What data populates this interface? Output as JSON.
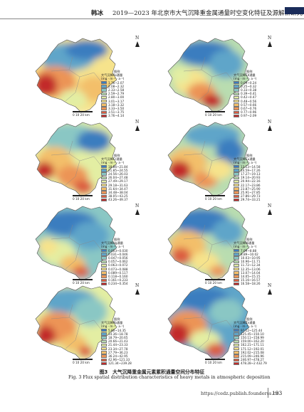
{
  "header": {
    "author": "韩冰",
    "title": "2019—2023 年北京市大气沉降重金属通量时空变化特征及源解析研究"
  },
  "north_label": "N",
  "legend_title": "图例",
  "flux_unit": "(mg · m⁻² · a⁻¹)",
  "scale_label": "0  10  20 km",
  "panels": [
    {
      "element": "As",
      "label": "大气沉降As通量",
      "colors": [
        "#3b7dbf",
        "#5fa5c9",
        "#8ac7c4",
        "#b9ddb0",
        "#e3eea3",
        "#f6e38c",
        "#f3bf6a",
        "#ec9456",
        "#dc5d3f",
        "#c22b2b"
      ],
      "ranges": [
        "1.76~2.07",
        "2.08~2.32",
        "2.33~2.58",
        "2.59~2.79",
        "2.80~3.00",
        "3.01~3.17",
        "3.18~3.32",
        "3.33~3.50",
        "3.51~3.75",
        "3.76~4.14"
      ]
    },
    {
      "element": "Cd",
      "label": "大气沉降Cd通量",
      "colors": [
        "#3b7dbf",
        "#5fa5c9",
        "#8ac7c4",
        "#b9ddb0",
        "#e3eea3",
        "#f6e38c",
        "#f3bf6a",
        "#ec9456",
        "#dc5d3f",
        "#c22b2b"
      ],
      "ranges": [
        "0.09~0.24",
        "0.25~0.32",
        "0.33~0.38",
        "0.39~0.41",
        "0.42~0.47",
        "0.48~0.56",
        "0.57~0.66",
        "0.67~0.76",
        "0.77~0.96",
        "0.97~2.09"
      ]
    },
    {
      "element": "Cr",
      "label": "大气沉降Cr通量",
      "colors": [
        "#3b7dbf",
        "#5fa5c9",
        "#8ac7c4",
        "#b9ddb0",
        "#e3eea3",
        "#f6e38c",
        "#f3bf6a",
        "#ec9456",
        "#dc5d3f",
        "#c22b2b"
      ],
      "ranges": [
        "18.86~21.84",
        "21.85~24.55",
        "24.56~26.03",
        "26.04~27.48",
        "27.49~29.17",
        "29.18~31.63",
        "31.64~34.47",
        "34.48~38.04",
        "38.05~43.25",
        "43.26~49.37"
      ]
    },
    {
      "element": "Cu",
      "label": "大气沉降Cu通量",
      "colors": [
        "#3b7dbf",
        "#5fa5c9",
        "#8ac7c4",
        "#b9ddb0",
        "#e3eea3",
        "#f6e38c",
        "#f3bf6a",
        "#ec9456",
        "#dc5d3f",
        "#c22b2b"
      ],
      "ranges": [
        "13.13~14.58",
        "14.59~17.26",
        "17.27~19.13",
        "19.14~20.93",
        "20.94~22.16",
        "22.17~23.86",
        "23.87~25.90",
        "25.91~27.85",
        "27.86~29.73",
        "29.74~33.21"
      ]
    },
    {
      "element": "Hg",
      "label": "大气沉降Hg通量",
      "colors": [
        "#3b7dbf",
        "#5fa5c9",
        "#8ac7c4",
        "#b9ddb0",
        "#e3eea3",
        "#f6e38c",
        "#f3bf6a",
        "#ec9456",
        "#dc5d3f",
        "#c22b2b"
      ],
      "ranges": [
        "0.003~0.030",
        "0.031~0.046",
        "0.047~0.056",
        "0.057~0.062",
        "0.063~0.072",
        "0.073~0.088",
        "0.089~0.117",
        "0.118~0.160",
        "0.161~0.233",
        "0.234~0.354"
      ]
    },
    {
      "element": "Ni",
      "label": "大气沉降Ni通量",
      "colors": [
        "#3b7dbf",
        "#5fa5c9",
        "#8ac7c4",
        "#b9ddb0",
        "#e3eea3",
        "#f6e38c",
        "#f3bf6a",
        "#ec9456",
        "#dc5d3f",
        "#c22b2b"
      ],
      "ranges": [
        "7.09~8.88",
        "8.89~10.02",
        "10.03~10.95",
        "10.96~11.71",
        "11.72~12.34",
        "12.35~13.06",
        "13.07~14.04",
        "14.05~15.15",
        "15.16~16.57",
        "16.58~18.26"
      ]
    },
    {
      "element": "Pb",
      "label": "大气沉降Pb通量",
      "colors": [
        "#3b7dbf",
        "#5fa5c9",
        "#8ac7c4",
        "#b9ddb0",
        "#e3eea3",
        "#f6e38c",
        "#f3bf6a",
        "#ec9456",
        "#dc5d3f",
        "#c22b2b"
      ],
      "ranges": [
        "5.80~14.35",
        "14.36~18.78",
        "18.79~20.65",
        "20.66~21.43",
        "21.44~23.33",
        "23.34~27.78",
        "27.79~36.23",
        "36.24~42.95",
        "42.96~121.33",
        "121.34~239.28"
      ]
    },
    {
      "element": "Zn",
      "label": "大气沉降Zn通量",
      "colors": [
        "#3b7dbf",
        "#5fa5c9",
        "#8ac7c4",
        "#b9ddb0",
        "#e3eea3",
        "#f6e38c",
        "#f3bf6a",
        "#ec9456",
        "#dc5d3f",
        "#c22b2b"
      ],
      "ranges": [
        "97.12~125.44",
        "125.45~150.10",
        "150.11~158.99",
        "159.00~162.20",
        "162.21~171.11",
        "171.12~192.01",
        "192.02~215.08",
        "215.09~246.96",
        "246.97~478.27",
        "478.28~2 432.79"
      ]
    }
  ],
  "caption_cn": "图3　大气沉降重金属元素累积通量空间分布特征",
  "caption_en": "Fig. 3   Flux spatial distribution characteristics of heavy metals in atmospheric deposition",
  "footer": {
    "url": "https://cedz.publish.founderss.cn",
    "page": "193"
  }
}
